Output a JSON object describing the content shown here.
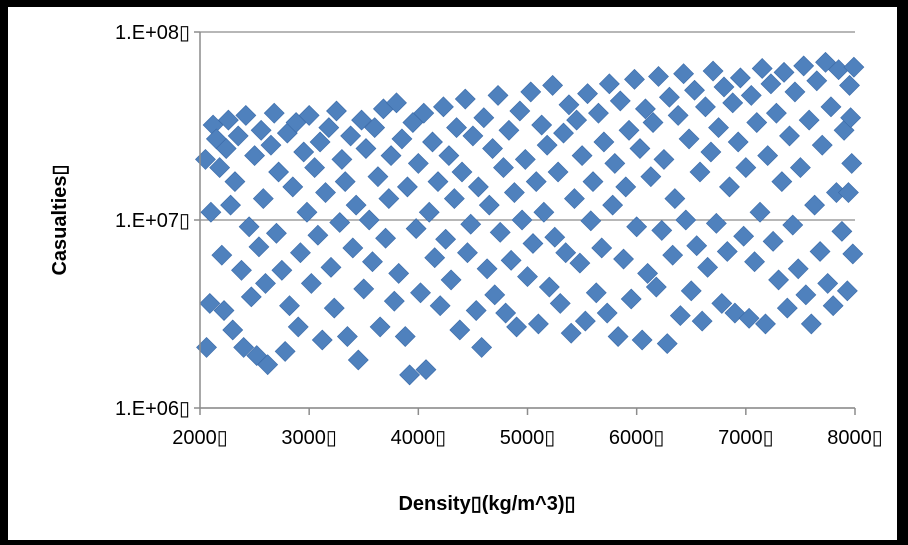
{
  "chart_data": {
    "type": "scatter",
    "title": "",
    "xlabel": "Density▯(kg/m^3)▯",
    "ylabel": "Casualties▯",
    "xlim": [
      2000,
      8000
    ],
    "ylim": [
      1000000,
      100000000
    ],
    "y_scale": "log",
    "grid": "horizontal",
    "legend": "none",
    "marker": "diamond",
    "color": "#4f81bd",
    "x_ticks": [
      {
        "value": 2000,
        "label": "2000▯"
      },
      {
        "value": 3000,
        "label": "3000▯"
      },
      {
        "value": 4000,
        "label": "4000▯"
      },
      {
        "value": 5000,
        "label": "5000▯"
      },
      {
        "value": 6000,
        "label": "6000▯"
      },
      {
        "value": 7000,
        "label": "7000▯"
      },
      {
        "value": 8000,
        "label": "8000▯"
      }
    ],
    "y_ticks": [
      {
        "value": 1000000,
        "label": "1.E+06▯"
      },
      {
        "value": 10000000,
        "label": "1.E+07▯"
      },
      {
        "value": 100000000,
        "label": "1.E+08▯"
      }
    ],
    "points": [
      [
        2050,
        21000000
      ],
      [
        2060,
        2100000
      ],
      [
        2090,
        3600000
      ],
      [
        2100,
        11000000
      ],
      [
        2120,
        32000000
      ],
      [
        2150,
        27000000
      ],
      [
        2180,
        19000000
      ],
      [
        2200,
        6500000
      ],
      [
        2220,
        3300000
      ],
      [
        2240,
        24000000
      ],
      [
        2260,
        34000000
      ],
      [
        2280,
        12000000
      ],
      [
        2300,
        2600000
      ],
      [
        2320,
        16000000
      ],
      [
        2350,
        28000000
      ],
      [
        2380,
        5400000
      ],
      [
        2400,
        2100000
      ],
      [
        2420,
        36000000
      ],
      [
        2450,
        9200000
      ],
      [
        2470,
        3900000
      ],
      [
        2500,
        22000000
      ],
      [
        2520,
        1900000
      ],
      [
        2540,
        7200000
      ],
      [
        2560,
        30000000
      ],
      [
        2580,
        13000000
      ],
      [
        2600,
        4600000
      ],
      [
        2620,
        1700000
      ],
      [
        2650,
        25000000
      ],
      [
        2680,
        37000000
      ],
      [
        2700,
        8500000
      ],
      [
        2720,
        18000000
      ],
      [
        2750,
        5400000
      ],
      [
        2780,
        2000000
      ],
      [
        2800,
        29000000
      ],
      [
        2820,
        3500000
      ],
      [
        2850,
        15000000
      ],
      [
        2880,
        33000000
      ],
      [
        2900,
        2700000
      ],
      [
        2920,
        6700000
      ],
      [
        2950,
        23000000
      ],
      [
        2980,
        11000000
      ],
      [
        3000,
        36000000
      ],
      [
        3020,
        4600000
      ],
      [
        3050,
        19000000
      ],
      [
        3080,
        8300000
      ],
      [
        3100,
        26000000
      ],
      [
        3120,
        2300000
      ],
      [
        3150,
        14000000
      ],
      [
        3180,
        31000000
      ],
      [
        3200,
        5600000
      ],
      [
        3230,
        3400000
      ],
      [
        3250,
        38000000
      ],
      [
        3280,
        9700000
      ],
      [
        3300,
        21000000
      ],
      [
        3330,
        16000000
      ],
      [
        3350,
        2400000
      ],
      [
        3380,
        28000000
      ],
      [
        3400,
        7100000
      ],
      [
        3430,
        12000000
      ],
      [
        3450,
        1800000
      ],
      [
        3480,
        34000000
      ],
      [
        3500,
        4300000
      ],
      [
        3520,
        24000000
      ],
      [
        3550,
        10000000
      ],
      [
        3580,
        6000000
      ],
      [
        3600,
        31000000
      ],
      [
        3630,
        17000000
      ],
      [
        3650,
        2700000
      ],
      [
        3680,
        39000000
      ],
      [
        3700,
        8000000
      ],
      [
        3730,
        13000000
      ],
      [
        3750,
        22000000
      ],
      [
        3780,
        3700000
      ],
      [
        3800,
        42000000
      ],
      [
        3820,
        5200000
      ],
      [
        3850,
        27000000
      ],
      [
        3880,
        2400000
      ],
      [
        3900,
        15000000
      ],
      [
        3920,
        1500000
      ],
      [
        3950,
        33000000
      ],
      [
        3980,
        9000000
      ],
      [
        4000,
        20000000
      ],
      [
        4020,
        4100000
      ],
      [
        4050,
        37000000
      ],
      [
        4070,
        1600000
      ],
      [
        4100,
        11000000
      ],
      [
        4130,
        26000000
      ],
      [
        4150,
        6300000
      ],
      [
        4180,
        16000000
      ],
      [
        4200,
        3500000
      ],
      [
        4230,
        40000000
      ],
      [
        4250,
        7900000
      ],
      [
        4280,
        22000000
      ],
      [
        4300,
        4800000
      ],
      [
        4330,
        13000000
      ],
      [
        4350,
        31000000
      ],
      [
        4380,
        2600000
      ],
      [
        4400,
        18000000
      ],
      [
        4430,
        44000000
      ],
      [
        4450,
        6700000
      ],
      [
        4480,
        9500000
      ],
      [
        4500,
        28000000
      ],
      [
        4530,
        3300000
      ],
      [
        4550,
        15000000
      ],
      [
        4580,
        2100000
      ],
      [
        4600,
        35000000
      ],
      [
        4630,
        5500000
      ],
      [
        4650,
        12000000
      ],
      [
        4680,
        24000000
      ],
      [
        4700,
        4000000
      ],
      [
        4730,
        46000000
      ],
      [
        4750,
        8600000
      ],
      [
        4780,
        19000000
      ],
      [
        4800,
        3200000
      ],
      [
        4830,
        30000000
      ],
      [
        4850,
        6100000
      ],
      [
        4880,
        14000000
      ],
      [
        4900,
        2700000
      ],
      [
        4930,
        38000000
      ],
      [
        4950,
        10000000
      ],
      [
        4980,
        21000000
      ],
      [
        5000,
        5000000
      ],
      [
        5030,
        48000000
      ],
      [
        5050,
        7500000
      ],
      [
        5080,
        16000000
      ],
      [
        5100,
        2800000
      ],
      [
        5130,
        32000000
      ],
      [
        5150,
        11000000
      ],
      [
        5180,
        25000000
      ],
      [
        5200,
        4400000
      ],
      [
        5230,
        52000000
      ],
      [
        5250,
        8100000
      ],
      [
        5280,
        18000000
      ],
      [
        5300,
        3600000
      ],
      [
        5330,
        29000000
      ],
      [
        5350,
        6700000
      ],
      [
        5380,
        41000000
      ],
      [
        5400,
        2500000
      ],
      [
        5430,
        13000000
      ],
      [
        5450,
        34000000
      ],
      [
        5480,
        5900000
      ],
      [
        5500,
        22000000
      ],
      [
        5530,
        2900000
      ],
      [
        5550,
        47000000
      ],
      [
        5580,
        9900000
      ],
      [
        5600,
        16000000
      ],
      [
        5630,
        4100000
      ],
      [
        5650,
        37000000
      ],
      [
        5680,
        7100000
      ],
      [
        5700,
        26000000
      ],
      [
        5730,
        3200000
      ],
      [
        5750,
        53000000
      ],
      [
        5780,
        12000000
      ],
      [
        5800,
        20000000
      ],
      [
        5830,
        2400000
      ],
      [
        5850,
        43000000
      ],
      [
        5880,
        6200000
      ],
      [
        5900,
        15000000
      ],
      [
        5930,
        30000000
      ],
      [
        5950,
        3800000
      ],
      [
        5980,
        56000000
      ],
      [
        6000,
        9200000
      ],
      [
        6030,
        24000000
      ],
      [
        6050,
        2300000
      ],
      [
        6080,
        39000000
      ],
      [
        6100,
        5200000
      ],
      [
        6130,
        17000000
      ],
      [
        6150,
        33000000
      ],
      [
        6180,
        4400000
      ],
      [
        6200,
        58000000
      ],
      [
        6230,
        8800000
      ],
      [
        6250,
        21000000
      ],
      [
        6280,
        2200000
      ],
      [
        6300,
        45000000
      ],
      [
        6330,
        6500000
      ],
      [
        6350,
        13000000
      ],
      [
        6380,
        36000000
      ],
      [
        6400,
        3100000
      ],
      [
        6430,
        60000000
      ],
      [
        6450,
        10000000
      ],
      [
        6480,
        27000000
      ],
      [
        6500,
        4200000
      ],
      [
        6530,
        49000000
      ],
      [
        6550,
        7300000
      ],
      [
        6580,
        18000000
      ],
      [
        6600,
        2900000
      ],
      [
        6630,
        40000000
      ],
      [
        6650,
        5600000
      ],
      [
        6680,
        23000000
      ],
      [
        6700,
        62000000
      ],
      [
        6730,
        9600000
      ],
      [
        6750,
        31000000
      ],
      [
        6780,
        3600000
      ],
      [
        6800,
        51000000
      ],
      [
        6830,
        6800000
      ],
      [
        6850,
        15000000
      ],
      [
        6880,
        42000000
      ],
      [
        6900,
        3200000
      ],
      [
        6930,
        26000000
      ],
      [
        6950,
        57000000
      ],
      [
        6980,
        8200000
      ],
      [
        7000,
        19000000
      ],
      [
        7030,
        3000000
      ],
      [
        7050,
        46000000
      ],
      [
        7080,
        6000000
      ],
      [
        7100,
        33000000
      ],
      [
        7130,
        11000000
      ],
      [
        7150,
        64000000
      ],
      [
        7180,
        2800000
      ],
      [
        7200,
        22000000
      ],
      [
        7230,
        53000000
      ],
      [
        7250,
        7700000
      ],
      [
        7280,
        37000000
      ],
      [
        7300,
        4800000
      ],
      [
        7330,
        16000000
      ],
      [
        7350,
        61000000
      ],
      [
        7380,
        3400000
      ],
      [
        7400,
        28000000
      ],
      [
        7430,
        9400000
      ],
      [
        7450,
        48000000
      ],
      [
        7480,
        5500000
      ],
      [
        7500,
        19000000
      ],
      [
        7530,
        66000000
      ],
      [
        7550,
        4000000
      ],
      [
        7580,
        34000000
      ],
      [
        7600,
        2800000
      ],
      [
        7630,
        12000000
      ],
      [
        7650,
        55000000
      ],
      [
        7680,
        6800000
      ],
      [
        7700,
        25000000
      ],
      [
        7730,
        69000000
      ],
      [
        7750,
        4600000
      ],
      [
        7780,
        40000000
      ],
      [
        7800,
        3500000
      ],
      [
        7830,
        14000000
      ],
      [
        7850,
        63000000
      ],
      [
        7880,
        8700000
      ],
      [
        7900,
        30000000
      ],
      [
        7930,
        4200000
      ],
      [
        7950,
        52000000
      ],
      [
        7970,
        20000000
      ],
      [
        7980,
        6600000
      ],
      [
        7990,
        65000000
      ],
      [
        7960,
        35000000
      ],
      [
        7940,
        14000000
      ]
    ]
  }
}
